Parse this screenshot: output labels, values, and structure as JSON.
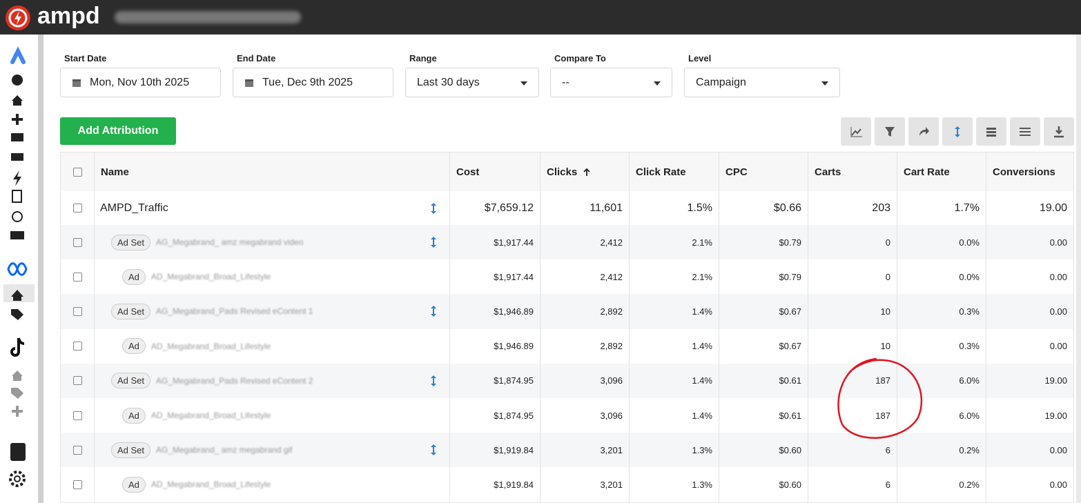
{
  "header": {
    "brand": "ampd"
  },
  "filters": [
    {
      "label": "Start Date",
      "value": "Mon, Nov 10th 2025"
    },
    {
      "label": "End Date",
      "value": "Tue, Dec 9th 2025"
    },
    {
      "label": "Range",
      "value": "Last 30 days"
    },
    {
      "label": "Compare To",
      "value": "--"
    },
    {
      "label": "Level",
      "value": "Campaign"
    }
  ],
  "add_button": "Add Attribution",
  "table": {
    "columns": [
      "Name",
      "Cost",
      "Clicks",
      "Click Rate",
      "CPC",
      "Carts",
      "Cart Rate",
      "Conversions"
    ],
    "rows": [
      {
        "name": "AMPD_Traffic",
        "cells": [
          "$7,659.12",
          "11,601",
          "1.5%",
          "$0.66",
          "203",
          "1.7%",
          "19.00"
        ]
      },
      {
        "badge": "Ad Set",
        "name": "AG_Megabrand_ amz megabrand video",
        "cells": [
          "$1,917.44",
          "2,412",
          "2.1%",
          "$0.79",
          "0",
          "0.0%",
          "0.00"
        ]
      },
      {
        "badge": "Ad",
        "name": "AD_Megabrand_Broad_Lifestyle",
        "cells": [
          "$1,917.44",
          "2,412",
          "2.1%",
          "$0.79",
          "0",
          "0.0%",
          "0.00"
        ]
      },
      {
        "badge": "Ad Set",
        "name": "AG_Megabrand_Pads Revised eContent 1",
        "cells": [
          "$1,946.89",
          "2,892",
          "1.4%",
          "$0.67",
          "10",
          "0.3%",
          "0.00"
        ]
      },
      {
        "badge": "Ad",
        "name": "AD_Megabrand_Broad_Lifestyle",
        "cells": [
          "$1,946.89",
          "2,892",
          "1.4%",
          "$0.67",
          "10",
          "0.3%",
          "0.00"
        ]
      },
      {
        "badge": "Ad Set",
        "name": "AG_Megabrand_Pads Revised eContent 2",
        "cells": [
          "$1,874.95",
          "3,096",
          "1.4%",
          "$0.61",
          "187",
          "6.0%",
          "19.00"
        ]
      },
      {
        "badge": "Ad",
        "name": "AD_Megabrand_Broad_Lifestyle",
        "cells": [
          "$1,874.95",
          "3,096",
          "1.4%",
          "$0.61",
          "187",
          "6.0%",
          "19.00"
        ]
      },
      {
        "badge": "Ad Set",
        "name": "AG_Megabrand_ amz megabrand gif",
        "cells": [
          "$1,919.84",
          "3,201",
          "1.3%",
          "$0.60",
          "6",
          "0.2%",
          "0.00"
        ]
      },
      {
        "badge": "Ad",
        "name": "AD_Megabrand_Broad_Lifestyle",
        "cells": [
          "$1,919.84",
          "3,201",
          "1.3%",
          "$0.60",
          "6",
          "0.2%",
          "0.00"
        ]
      }
    ]
  }
}
